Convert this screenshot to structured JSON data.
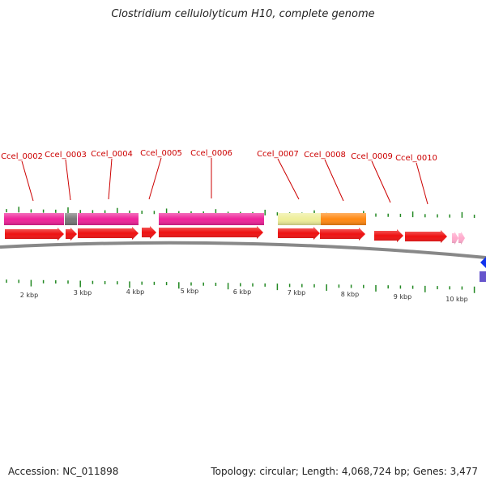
{
  "title": "Clostridium cellulolyticum H10, complete genome",
  "footer": {
    "accession": "Accession: NC_011898",
    "summary": "Topology: circular; Length: 4,068,724 bp; Genes: 3,477"
  },
  "colors": {
    "cds": "#ee1111",
    "cds_light": "#ffaacc",
    "cog_pink": "#ee2299",
    "cog_gray": "#777777",
    "cog_yellow": "#eeee99",
    "cog_orange": "#ff8811",
    "tick": "#228822",
    "label_line": "#cc0000",
    "backbone": "#888888",
    "blue": "#1133ee",
    "purple": "#6655cc"
  },
  "axis_labels": [
    "2 kbp",
    "3 kbp",
    "4 kbp",
    "5 kbp",
    "6 kbp",
    "7 kbp",
    "8 kbp",
    "9 kbp",
    "10 kbp"
  ],
  "gene_labels": [
    "Ccel_0002",
    "Ccel_0003",
    "Ccel_0004",
    "Ccel_0005",
    "Ccel_0006",
    "Ccel_0007",
    "Ccel_0008",
    "Ccel_0009",
    "Ccel_0010"
  ]
}
